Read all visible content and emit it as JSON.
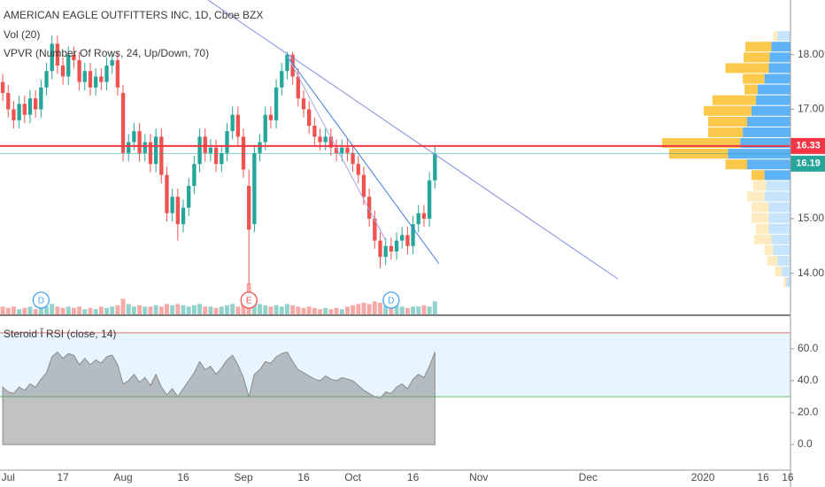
{
  "chart_data": {
    "type": "candlestick",
    "title": "AMERICAN EAGLE OUTFITTERS INC, 1D, Cboe BZX",
    "indicators": [
      "Vol (20)",
      "VPVR (Number Of Rows, 24, Up/Down, 70)"
    ],
    "xlim": [
      -0.5,
      144
    ],
    "xticks": [
      {
        "value": 1,
        "label": "Jul"
      },
      {
        "value": 11,
        "label": "17"
      },
      {
        "value": 22,
        "label": "Aug"
      },
      {
        "value": 33,
        "label": "16"
      },
      {
        "value": 44,
        "label": "Sep"
      },
      {
        "value": 55,
        "label": "16"
      },
      {
        "value": 64,
        "label": "Oct"
      },
      {
        "value": 75,
        "label": "16"
      },
      {
        "value": 87,
        "label": "Nov"
      },
      {
        "value": 107,
        "label": "Dec"
      },
      {
        "value": 128,
        "label": "2020"
      },
      {
        "value": 139,
        "label": "16"
      },
      {
        "value": 143.5,
        "label": "16"
      }
    ],
    "ylim": [
      13.25,
      19.0
    ],
    "yticks": [
      {
        "value": 18,
        "label": "18.00"
      },
      {
        "value": 17,
        "label": "17.00"
      },
      {
        "value": 15,
        "label": "15.00"
      },
      {
        "value": 14,
        "label": "14.00"
      }
    ],
    "colors": {
      "up": "#26a69a",
      "down": "#ef5350"
    },
    "open": [
      17.5,
      17.3,
      17.0,
      16.8,
      17.1,
      16.9,
      17.2,
      17.0,
      17.4,
      17.7,
      18.2,
      17.8,
      17.6,
      18.0,
      17.9,
      17.5,
      17.7,
      17.4,
      17.6,
      17.5,
      17.8,
      17.9,
      17.3,
      16.2,
      16.4,
      16.6,
      16.2,
      16.4,
      16.0,
      16.5,
      15.8,
      15.1,
      15.4,
      14.9,
      15.2,
      15.6,
      16.0,
      16.5,
      16.2,
      16.3,
      16.0,
      16.2,
      16.6,
      16.9,
      16.5,
      15.6,
      14.9,
      16.2,
      16.4,
      16.9,
      16.8,
      17.4,
      17.7,
      18.0,
      17.6,
      17.2,
      17.0,
      16.7,
      16.5,
      16.4,
      16.5,
      16.3,
      16.2,
      16.3,
      16.2,
      16.0,
      15.8,
      15.4,
      15.0,
      14.6,
      14.3,
      14.5,
      14.4,
      14.6,
      14.7,
      14.5,
      14.9,
      15.1,
      15.0,
      15.7
    ],
    "high": [
      17.65,
      17.45,
      17.15,
      17.25,
      17.25,
      17.35,
      17.35,
      17.55,
      17.85,
      18.35,
      18.35,
      17.95,
      18.15,
      18.15,
      18.05,
      17.85,
      17.85,
      17.75,
      17.75,
      17.95,
      18.05,
      18.05,
      17.45,
      16.55,
      16.75,
      16.75,
      16.55,
      16.55,
      16.65,
      16.65,
      15.95,
      15.55,
      15.55,
      15.35,
      15.75,
      16.15,
      16.65,
      16.65,
      16.45,
      16.45,
      16.35,
      16.75,
      17.05,
      17.05,
      16.65,
      15.9,
      16.35,
      16.55,
      17.05,
      17.05,
      17.55,
      17.85,
      18.05,
      18.05,
      17.75,
      17.35,
      17.15,
      16.85,
      16.65,
      16.65,
      16.65,
      16.45,
      16.45,
      16.45,
      16.35,
      16.15,
      15.95,
      15.55,
      15.15,
      14.75,
      14.65,
      14.65,
      14.75,
      14.85,
      14.85,
      15.05,
      15.25,
      15.25,
      15.85,
      16.33
    ],
    "low": [
      17.15,
      16.85,
      16.65,
      16.65,
      16.75,
      16.75,
      16.85,
      16.85,
      17.25,
      17.55,
      17.65,
      17.45,
      17.45,
      17.75,
      17.35,
      17.35,
      17.25,
      17.25,
      17.35,
      17.35,
      17.65,
      17.25,
      16.05,
      16.05,
      16.25,
      16.05,
      16.05,
      15.85,
      15.85,
      15.65,
      14.95,
      14.95,
      14.6,
      14.75,
      15.05,
      15.45,
      15.85,
      16.05,
      16.05,
      15.85,
      15.85,
      16.05,
      16.45,
      16.35,
      15.75,
      13.8,
      14.75,
      16.05,
      16.25,
      16.65,
      16.65,
      17.25,
      17.55,
      17.45,
      17.05,
      16.85,
      16.55,
      16.35,
      16.25,
      16.25,
      16.15,
      16.05,
      16.05,
      16.05,
      15.85,
      15.65,
      15.25,
      14.85,
      14.45,
      14.1,
      14.15,
      14.25,
      14.25,
      14.45,
      14.35,
      14.35,
      14.75,
      14.85,
      14.85,
      15.55
    ],
    "close": [
      17.3,
      17.0,
      16.8,
      17.1,
      16.9,
      17.2,
      17.0,
      17.4,
      17.7,
      18.2,
      17.8,
      17.6,
      18.0,
      17.9,
      17.5,
      17.7,
      17.4,
      17.6,
      17.5,
      17.8,
      17.9,
      17.4,
      16.2,
      16.4,
      16.6,
      16.2,
      16.4,
      16.0,
      16.5,
      15.8,
      15.1,
      15.4,
      14.9,
      15.2,
      15.6,
      16.0,
      16.5,
      16.2,
      16.3,
      16.0,
      16.2,
      16.6,
      16.9,
      16.5,
      15.9,
      14.8,
      16.2,
      16.4,
      16.9,
      16.8,
      17.4,
      17.7,
      18.0,
      17.6,
      17.2,
      17.0,
      16.7,
      16.5,
      16.4,
      16.5,
      16.3,
      16.2,
      16.3,
      16.2,
      16.0,
      15.8,
      15.4,
      15.0,
      14.6,
      14.3,
      14.5,
      14.4,
      14.6,
      14.7,
      14.5,
      14.9,
      15.1,
      15.0,
      15.7,
      16.19
    ],
    "price_lines": [
      {
        "value": 16.33,
        "color": "#f23645"
      },
      {
        "value": 16.19,
        "color": "#26a69a"
      }
    ],
    "events": [
      {
        "label": "D",
        "index": 7
      },
      {
        "label": "E",
        "index": 45
      },
      {
        "label": "D",
        "index": 71
      }
    ],
    "volume": {
      "values": [
        3,
        2.5,
        3,
        2,
        2.5,
        3,
        2,
        3.5,
        3,
        4,
        3,
        2.5,
        3,
        2.5,
        3,
        2,
        2.5,
        2,
        3,
        2.5,
        3,
        3.5,
        6,
        4,
        3,
        3.5,
        3,
        3,
        3.5,
        3,
        4,
        3.5,
        4,
        3.5,
        3,
        3.5,
        4,
        3,
        3,
        2.5,
        3,
        3.5,
        4,
        3,
        5,
        12,
        6,
        4,
        3.5,
        3,
        3.5,
        3,
        4,
        3.5,
        3,
        2.5,
        3,
        2.5,
        2,
        2.5,
        2,
        2.5,
        2,
        3,
        3.5,
        4,
        4.5,
        4,
        5,
        4.5,
        3.5,
        3,
        3.5,
        3,
        2.5,
        3,
        3,
        3.5,
        3,
        5
      ]
    },
    "vpvr": {
      "price_range": [
        13.74,
        18.44
      ],
      "value_area_rows": [
        1,
        13
      ],
      "up_color": "#42a5f5",
      "down_color": "#fbc02d",
      "up": [
        15,
        22,
        24,
        25,
        30,
        38,
        40,
        45,
        50,
        55,
        58,
        72,
        50,
        30,
        28,
        30,
        25,
        25,
        25,
        22,
        20,
        15,
        10,
        5
      ],
      "down": [
        5,
        30,
        30,
        50,
        25,
        15,
        50,
        55,
        45,
        40,
        90,
        68,
        25,
        15,
        15,
        20,
        20,
        20,
        15,
        20,
        10,
        12,
        8,
        3
      ]
    },
    "rsi": {
      "title": "Steroid Î RSI (close, 14)",
      "ylim": [
        -15.5,
        80.5
      ],
      "yticks": [
        {
          "value": 60,
          "label": "60.0"
        },
        {
          "value": 40,
          "label": "40.0"
        },
        {
          "value": 20,
          "label": "20.0"
        },
        {
          "value": 0,
          "label": "0.0"
        }
      ],
      "bands": [
        70,
        30
      ],
      "values": [
        36,
        33,
        32,
        36,
        34,
        38,
        36,
        41,
        45,
        55,
        58,
        54,
        57,
        56,
        50,
        54,
        50,
        53,
        51,
        55,
        56,
        50,
        38,
        40,
        44,
        39,
        42,
        37,
        44,
        36,
        31,
        35,
        30,
        35,
        40,
        45,
        52,
        47,
        49,
        44,
        48,
        53,
        56,
        50,
        42,
        30,
        44,
        47,
        52,
        51,
        55,
        57,
        58,
        52,
        47,
        45,
        43,
        41,
        40,
        43,
        41,
        40,
        42,
        41,
        40,
        37,
        34,
        32,
        30,
        29,
        33,
        32,
        36,
        38,
        35,
        41,
        44,
        42,
        49,
        58
      ]
    }
  }
}
